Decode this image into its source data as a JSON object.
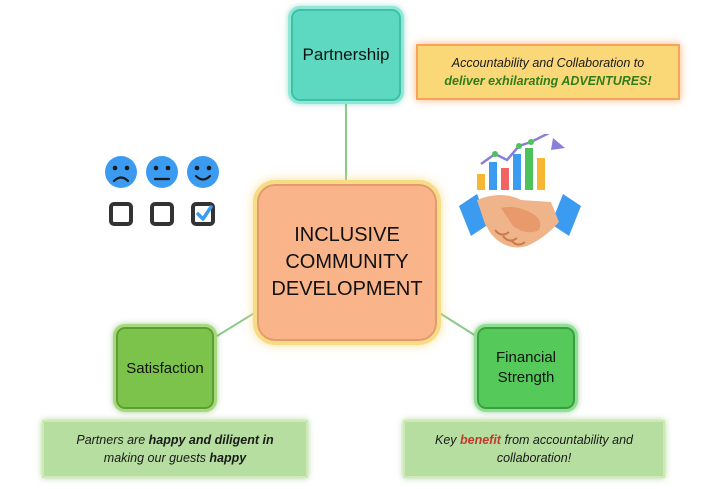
{
  "nodes": {
    "partnership": {
      "label": "Partnership"
    },
    "center": {
      "line1": "INCLUSIVE",
      "line2": "COMMUNITY",
      "line3": "DEVELOPMENT"
    },
    "satisfaction": {
      "label": "Satisfaction"
    },
    "financial": {
      "line1": "Financial",
      "line2": "Strength"
    }
  },
  "callouts": {
    "partnership": {
      "line1": "Accountability and Collaboration to",
      "line2": "deliver exhilarating ADVENTURES!"
    },
    "satisfaction": {
      "p1": "Partners are ",
      "p2": "happy and diligent in",
      "p3": "making our guests ",
      "p4": "happy"
    },
    "financial": {
      "p1": "Key ",
      "p2": "benefit",
      "p3": " from accountability and",
      "p4": "collaboration!"
    }
  },
  "icons": {
    "survey": "satisfaction-survey-icon",
    "handshake": "handshake-growth-icon"
  },
  "colors": {
    "partnership": "#5dd9c1",
    "center": "#f9b48a",
    "satisfaction": "#7cc34b",
    "financial": "#56c95b",
    "callout_top": "#fbd877",
    "callout_bottom": "#b5dea0",
    "connector": "#8cc98c"
  }
}
